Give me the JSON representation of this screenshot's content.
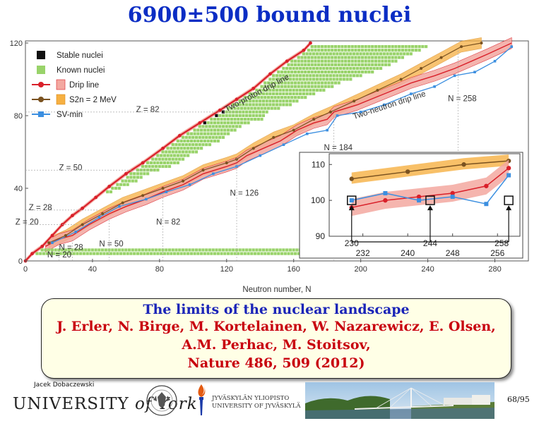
{
  "slide": {
    "title": "6900±500 bound nuclei",
    "author": "Jacek Dobaczewski",
    "york_prefix": "UNIVERSITY",
    "york_of": "of",
    "york_name": "York",
    "jyu_line1": "JYVÄSKYLÄN YLIOPISTO",
    "jyu_line2": "UNIVERSITY OF JYVÄSKYLÄ",
    "page_number": "68/95"
  },
  "citation": {
    "heading": "The limits of the nuclear landscape",
    "authors_line1": "J. Erler, N. Birge, M. Kortelainen, W. Nazarewicz, E. Olsen,",
    "authors_line2": "A.M. Perhac, M. Stoitsov,",
    "reference": "Nature 486, 509 (2012)"
  },
  "chart_data": [
    {
      "type": "scatter",
      "xlabel": "Neutron number, N",
      "ylabel": "",
      "xlim": [
        0,
        300
      ],
      "ylim": [
        0,
        120
      ],
      "x_ticks": [
        0,
        40,
        80,
        120,
        160,
        200,
        240,
        280
      ],
      "y_ticks": [
        0,
        40,
        80,
        120
      ],
      "legend": [
        "Stable nuclei",
        "Known nuclei",
        "Drip line",
        "S2n = 2 MeV",
        "SV-min"
      ],
      "legend_position": "top-left",
      "annotations": [
        "Two-proton drip line",
        "Two-neutron drip line",
        "Z = 82",
        "Z = 50",
        "Z = 28",
        "Z = 20",
        "N = 20",
        "N = 28",
        "N = 50",
        "N = 82",
        "N = 126",
        "N = 184",
        "N = 258"
      ],
      "colors": {
        "stable": "#111111",
        "known": "#99d36a",
        "drip": "#d9202a",
        "drip_band": "#f3a8a0",
        "s2n": "#7a5220",
        "s2n_band": "#f6b042",
        "svmin": "#3c8fe0"
      },
      "series": [
        {
          "name": "Drip line",
          "points": [
            [
              0,
              0
            ],
            [
              4,
              4
            ],
            [
              10,
              8
            ],
            [
              16,
              14
            ],
            [
              22,
              20
            ],
            [
              28,
              25
            ],
            [
              34,
              29
            ],
            [
              42,
              35
            ],
            [
              50,
              41
            ],
            [
              60,
              48
            ],
            [
              70,
              54
            ],
            [
              82,
              62
            ],
            [
              92,
              69
            ],
            [
              104,
              76
            ],
            [
              116,
              83
            ],
            [
              126,
              89
            ],
            [
              136,
              95
            ],
            [
              146,
              103
            ],
            [
              156,
              110
            ],
            [
              166,
              116
            ],
            [
              170,
              120
            ]
          ]
        },
        {
          "name": "Two-neutron drip line",
          "points": [
            [
              12,
              8
            ],
            [
              20,
              12
            ],
            [
              28,
              14
            ],
            [
              38,
              20
            ],
            [
              50,
              26
            ],
            [
              60,
              30
            ],
            [
              72,
              34
            ],
            [
              82,
              38
            ],
            [
              94,
              42
            ],
            [
              106,
              48
            ],
            [
              120,
              52
            ],
            [
              126,
              54
            ],
            [
              132,
              58
            ],
            [
              142,
              62
            ],
            [
              152,
              66
            ],
            [
              162,
              72
            ],
            [
              172,
              76
            ],
            [
              180,
              78
            ],
            [
              184,
              82
            ],
            [
              198,
              86
            ],
            [
              214,
              92
            ],
            [
              230,
              98
            ],
            [
              244,
              102
            ],
            [
              256,
              106
            ],
            [
              266,
              110
            ],
            [
              276,
              114
            ],
            [
              290,
              120
            ]
          ]
        },
        {
          "name": "S2n = 2 MeV",
          "points": [
            [
              14,
              10
            ],
            [
              24,
              14
            ],
            [
              34,
              20
            ],
            [
              46,
              26
            ],
            [
              58,
              32
            ],
            [
              70,
              36
            ],
            [
              82,
              40
            ],
            [
              94,
              44
            ],
            [
              106,
              50
            ],
            [
              120,
              54
            ],
            [
              126,
              56
            ],
            [
              136,
              62
            ],
            [
              148,
              68
            ],
            [
              160,
              72
            ],
            [
              172,
              78
            ],
            [
              182,
              82
            ],
            [
              196,
              88
            ],
            [
              210,
              94
            ],
            [
              224,
              100
            ],
            [
              236,
              106
            ],
            [
              248,
              112
            ],
            [
              260,
              118
            ],
            [
              272,
              120
            ]
          ]
        },
        {
          "name": "SV-min",
          "points": [
            [
              16,
              10
            ],
            [
              30,
              16
            ],
            [
              44,
              24
            ],
            [
              56,
              30
            ],
            [
              72,
              34
            ],
            [
              84,
              38
            ],
            [
              98,
              42
            ],
            [
              112,
              48
            ],
            [
              126,
              52
            ],
            [
              140,
              58
            ],
            [
              154,
              64
            ],
            [
              168,
              70
            ],
            [
              180,
              72
            ],
            [
              186,
              80
            ],
            [
              200,
              82
            ],
            [
              214,
              86
            ],
            [
              230,
              92
            ],
            [
              244,
              96
            ],
            [
              256,
              102
            ],
            [
              268,
              104
            ],
            [
              280,
              110
            ],
            [
              290,
              118
            ]
          ]
        }
      ]
    },
    {
      "type": "line",
      "title": "",
      "xlim": [
        226,
        260
      ],
      "ylim": [
        90,
        113
      ],
      "x_ticks": [
        232,
        240,
        248,
        256
      ],
      "y_ticks": [
        90,
        100,
        110
      ],
      "marked_n": [
        "230",
        "244",
        "258"
      ],
      "series": [
        {
          "name": "S2n = 2 MeV",
          "x": [
            230,
            240,
            250,
            258
          ],
          "y": [
            106,
            108,
            110,
            111
          ]
        },
        {
          "name": "Drip line",
          "x": [
            230,
            236,
            242,
            248,
            254,
            258
          ],
          "y": [
            98,
            100,
            101,
            102,
            104,
            109
          ]
        },
        {
          "name": "SV-min",
          "x": [
            230,
            236,
            242,
            248,
            254,
            258
          ],
          "y": [
            100,
            102,
            100,
            101,
            99,
            107
          ]
        }
      ]
    }
  ]
}
